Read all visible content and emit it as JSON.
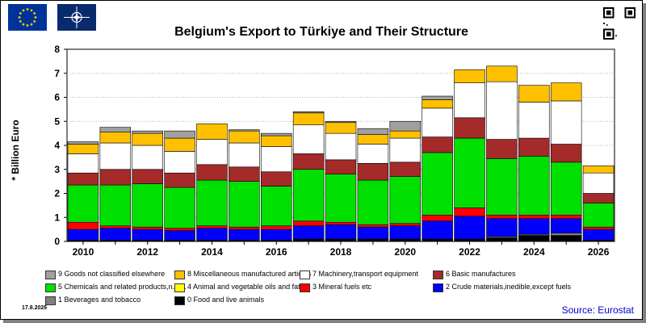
{
  "title": "Belgium's Export to Türkiye and Their Structure",
  "date_label": "17.8.2026",
  "source": "Source: Eurostat",
  "colors": {
    "eu_flag": "#003399",
    "nato_flag": "#0a2a6e",
    "plot_bg": "#ffffff"
  },
  "chart_data": {
    "type": "bar",
    "stacked": true,
    "ylabel": "* Billion Euro",
    "ylim": [
      0,
      8
    ],
    "yticks": [
      "0",
      "1",
      "2",
      "3",
      "4",
      "5",
      "6",
      "7",
      "8"
    ],
    "grid": "horizontal",
    "categories": [
      "2010",
      "2011",
      "2012",
      "2013",
      "2014",
      "2015",
      "2016",
      "2017",
      "2018",
      "2019",
      "2020",
      "2021",
      "2022",
      "2023",
      "2024",
      "2025",
      "2026"
    ],
    "xtick_labels": [
      "2010",
      "",
      "2012",
      "",
      "2014",
      "",
      "2016",
      "",
      "2018",
      "",
      "2020",
      "",
      "2022",
      "",
      "2024",
      "",
      "2026"
    ],
    "series": [
      {
        "name": "0 Food and live animals",
        "color": "#000000",
        "values": [
          0.05,
          0.05,
          0.05,
          0.05,
          0.05,
          0.05,
          0.05,
          0.1,
          0.1,
          0.1,
          0.1,
          0.1,
          0.1,
          0.15,
          0.25,
          0.25,
          0.05
        ]
      },
      {
        "name": "1 Beverages and tobacco",
        "color": "#808080",
        "values": [
          0.0,
          0.0,
          0.0,
          0.0,
          0.0,
          0.0,
          0.0,
          0.0,
          0.0,
          0.0,
          0.0,
          0.0,
          0.0,
          0.05,
          0.05,
          0.1,
          0.0
        ]
      },
      {
        "name": "2 Crude materials,inedible,except fuels",
        "color": "#0000ff",
        "values": [
          0.45,
          0.5,
          0.45,
          0.4,
          0.5,
          0.45,
          0.45,
          0.55,
          0.6,
          0.5,
          0.55,
          0.75,
          0.95,
          0.75,
          0.65,
          0.6,
          0.45
        ]
      },
      {
        "name": "3 Mineral fuels etc",
        "color": "#ff0000",
        "values": [
          0.3,
          0.1,
          0.1,
          0.1,
          0.1,
          0.1,
          0.15,
          0.2,
          0.1,
          0.1,
          0.1,
          0.25,
          0.35,
          0.15,
          0.15,
          0.15,
          0.1
        ]
      },
      {
        "name": "4 Animal and vegetable oils and fats",
        "color": "#ffff00",
        "values": [
          0.0,
          0.0,
          0.0,
          0.0,
          0.0,
          0.0,
          0.0,
          0.0,
          0.0,
          0.0,
          0.0,
          0.0,
          0.0,
          0.0,
          0.0,
          0.0,
          0.0
        ]
      },
      {
        "name": "5 Chemicals and related products,n.e.s.",
        "color": "#00e000",
        "values": [
          1.55,
          1.7,
          1.8,
          1.7,
          1.9,
          1.9,
          1.65,
          2.15,
          2.0,
          1.85,
          1.95,
          2.6,
          2.9,
          2.35,
          2.45,
          2.2,
          1.0
        ]
      },
      {
        "name": "6 Basic manufactures",
        "color": "#a52a2a",
        "values": [
          0.5,
          0.65,
          0.6,
          0.6,
          0.65,
          0.6,
          0.6,
          0.65,
          0.6,
          0.7,
          0.6,
          0.65,
          0.85,
          0.8,
          0.75,
          0.75,
          0.4
        ]
      },
      {
        "name": "7 Machinery,transport equipment",
        "color": "#ffffff",
        "values": [
          0.8,
          1.1,
          1.0,
          0.9,
          1.05,
          1.0,
          1.05,
          1.2,
          1.1,
          0.8,
          1.0,
          1.2,
          1.45,
          2.4,
          1.5,
          1.8,
          0.85
        ]
      },
      {
        "name": "8 Miscellaneous manufactured articles",
        "color": "#ffc000",
        "values": [
          0.4,
          0.45,
          0.5,
          0.55,
          0.65,
          0.5,
          0.45,
          0.5,
          0.45,
          0.4,
          0.3,
          0.35,
          0.55,
          0.65,
          0.7,
          0.75,
          0.3
        ]
      },
      {
        "name": "9 Goods not classified elsewhere",
        "color": "#a0a0a0",
        "values": [
          0.1,
          0.2,
          0.1,
          0.3,
          0.0,
          0.05,
          0.1,
          0.05,
          0.05,
          0.25,
          0.4,
          0.15,
          0.0,
          0.0,
          0.0,
          0.0,
          0.0
        ]
      }
    ],
    "legend_order": [
      9,
      8,
      7,
      6,
      5,
      4,
      3,
      2,
      1,
      0
    ],
    "legend_placement": "bottom"
  }
}
